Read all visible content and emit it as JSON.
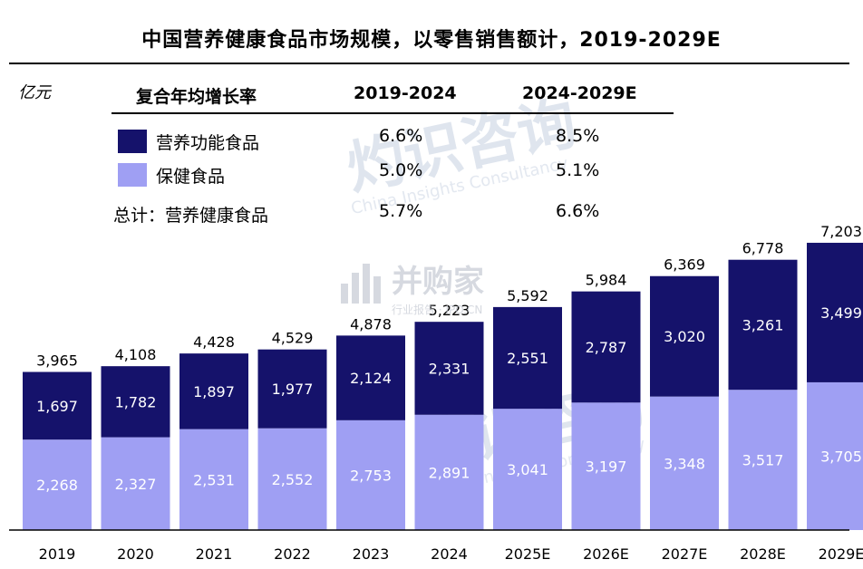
{
  "title": "中国营养健康食品市场规模，以零售销售额计，2019-2029E",
  "unit": "亿元",
  "cagr_table": {
    "header": "复合年均增长率",
    "col1": "2019-2024",
    "col2": "2024-2029E",
    "rows": [
      {
        "label": "营养功能食品",
        "c1": "6.6%",
        "c2": "8.5%",
        "swatch": "#15126b"
      },
      {
        "label": "保健食品",
        "c1": "5.0%",
        "c2": "5.1%",
        "swatch": "#9f9ff3"
      },
      {
        "label": "总计：营养健康食品",
        "c1": "5.7%",
        "c2": "6.6%"
      }
    ]
  },
  "watermark": {
    "brand": "灼识咨询",
    "english": "China Insights Consultancy",
    "logo_text": "并购家",
    "logo_sub": "行业报告 · IPO.CN"
  },
  "chart_data": {
    "type": "bar",
    "stacked": true,
    "categories": [
      "2019",
      "2020",
      "2021",
      "2022",
      "2023",
      "2024",
      "2025E",
      "2026E",
      "2027E",
      "2028E",
      "2029E"
    ],
    "series": [
      {
        "name": "保健食品",
        "color": "#9f9ff3",
        "values": [
          2268,
          2327,
          2531,
          2552,
          2753,
          2891,
          3041,
          3197,
          3348,
          3517,
          3705
        ]
      },
      {
        "name": "营养功能食品",
        "color": "#15126b",
        "values": [
          1697,
          1782,
          1897,
          1977,
          2124,
          2331,
          2551,
          2787,
          3020,
          3261,
          3499
        ]
      }
    ],
    "totals": [
      3965,
      4108,
      4428,
      4529,
      4878,
      5223,
      5592,
      5984,
      6369,
      6778,
      7203
    ],
    "ylim": [
      0,
      7203
    ],
    "grid": false
  }
}
